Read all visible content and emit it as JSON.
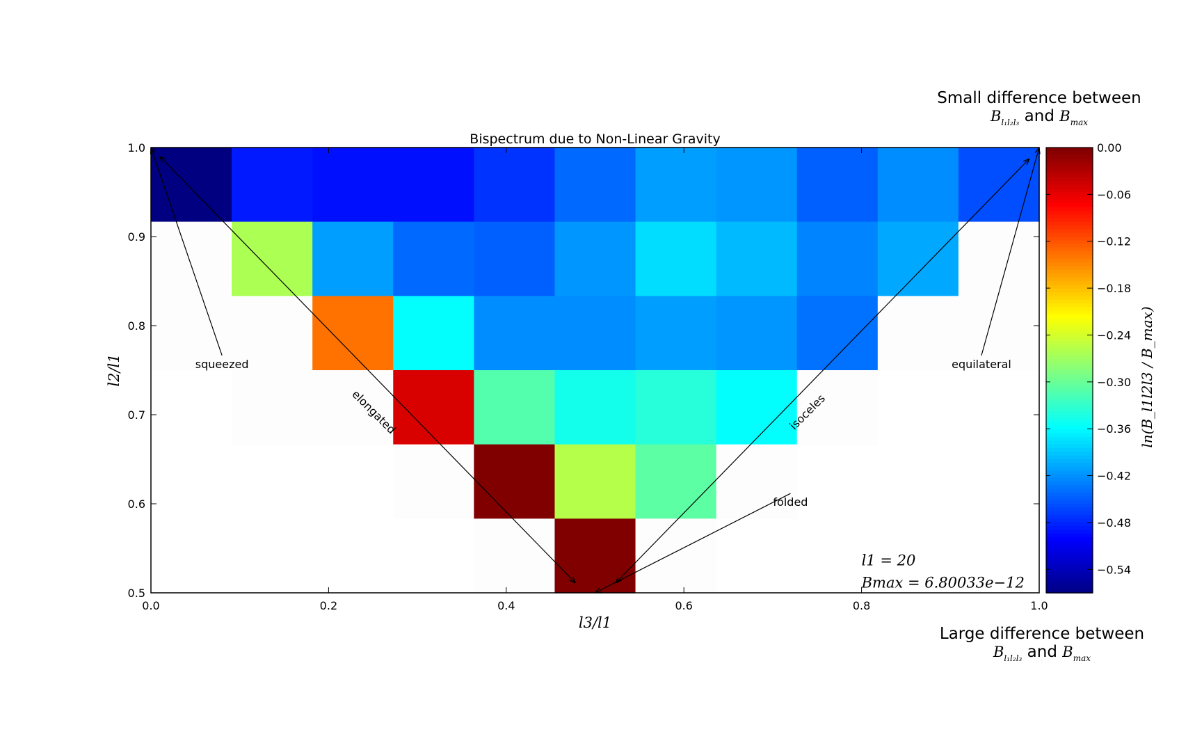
{
  "chart_data": {
    "type": "heatmap",
    "title": "Bispectrum due to Non-Linear Gravity",
    "xlabel": "l3/l1",
    "ylabel": "l2/l1",
    "xlim": [
      0.0,
      1.0
    ],
    "ylim": [
      0.5,
      1.0
    ],
    "x_ticks": [
      "0.0",
      "0.2",
      "0.4",
      "0.6",
      "0.8",
      "1.0"
    ],
    "y_ticks": [
      "0.5",
      "0.6",
      "0.7",
      "0.8",
      "0.9",
      "1.0"
    ],
    "grid": false,
    "colormap": "jet",
    "colorbar": {
      "label": "ln(B_l1l2l3 / B_max)",
      "range": [
        -0.57,
        0.0
      ],
      "ticks": [
        "0.00",
        "−0.06",
        "−0.12",
        "−0.18",
        "−0.24",
        "−0.30",
        "−0.36",
        "−0.42",
        "−0.48",
        "−0.54"
      ],
      "top_note": {
        "line1": "Small difference between",
        "conj": "and"
      },
      "bottom_note": {
        "line1": "Large difference between",
        "conj": "and"
      }
    },
    "grid_cols": 11,
    "row_edges": [
      1.0,
      0.9167,
      0.8333,
      0.75,
      0.6667,
      0.5833,
      0.5
    ],
    "cells": [
      {
        "row": 0,
        "col": 0,
        "value": -0.57
      },
      {
        "row": 0,
        "col": 1,
        "value": -0.485
      },
      {
        "row": 0,
        "col": 2,
        "value": -0.49
      },
      {
        "row": 0,
        "col": 3,
        "value": -0.49
      },
      {
        "row": 0,
        "col": 4,
        "value": -0.47
      },
      {
        "row": 0,
        "col": 5,
        "value": -0.44
      },
      {
        "row": 0,
        "col": 6,
        "value": -0.41
      },
      {
        "row": 0,
        "col": 7,
        "value": -0.415
      },
      {
        "row": 0,
        "col": 8,
        "value": -0.445
      },
      {
        "row": 0,
        "col": 9,
        "value": -0.42
      },
      {
        "row": 0,
        "col": 10,
        "value": -0.455
      },
      {
        "row": 1,
        "col": 0,
        "value": null
      },
      {
        "row": 1,
        "col": 1,
        "value": -0.26
      },
      {
        "row": 1,
        "col": 2,
        "value": -0.41
      },
      {
        "row": 1,
        "col": 3,
        "value": -0.44
      },
      {
        "row": 1,
        "col": 4,
        "value": -0.445
      },
      {
        "row": 1,
        "col": 5,
        "value": -0.415
      },
      {
        "row": 1,
        "col": 6,
        "value": -0.375
      },
      {
        "row": 1,
        "col": 7,
        "value": -0.395
      },
      {
        "row": 1,
        "col": 8,
        "value": -0.425
      },
      {
        "row": 1,
        "col": 9,
        "value": -0.405
      },
      {
        "row": 1,
        "col": 10,
        "value": null
      },
      {
        "row": 2,
        "col": 0,
        "value": null
      },
      {
        "row": 2,
        "col": 1,
        "value": null
      },
      {
        "row": 2,
        "col": 2,
        "value": -0.135
      },
      {
        "row": 2,
        "col": 3,
        "value": -0.355
      },
      {
        "row": 2,
        "col": 4,
        "value": -0.42
      },
      {
        "row": 2,
        "col": 5,
        "value": -0.42
      },
      {
        "row": 2,
        "col": 6,
        "value": -0.41
      },
      {
        "row": 2,
        "col": 7,
        "value": -0.415
      },
      {
        "row": 2,
        "col": 8,
        "value": -0.435
      },
      {
        "row": 2,
        "col": 9,
        "value": null
      },
      {
        "row": 2,
        "col": 10,
        "value": null
      },
      {
        "row": 3,
        "col": 1,
        "value": null
      },
      {
        "row": 3,
        "col": 2,
        "value": null
      },
      {
        "row": 3,
        "col": 3,
        "value": -0.05
      },
      {
        "row": 3,
        "col": 4,
        "value": -0.31
      },
      {
        "row": 3,
        "col": 5,
        "value": -0.345
      },
      {
        "row": 3,
        "col": 6,
        "value": -0.335
      },
      {
        "row": 3,
        "col": 7,
        "value": -0.355
      },
      {
        "row": 3,
        "col": 8,
        "value": null
      },
      {
        "row": 4,
        "col": 3,
        "value": null
      },
      {
        "row": 4,
        "col": 4,
        "value": 0.0
      },
      {
        "row": 4,
        "col": 5,
        "value": -0.255
      },
      {
        "row": 4,
        "col": 6,
        "value": -0.305
      },
      {
        "row": 4,
        "col": 7,
        "value": null
      },
      {
        "row": 5,
        "col": 4,
        "value": null
      },
      {
        "row": 5,
        "col": 5,
        "value": 0.0
      },
      {
        "row": 5,
        "col": 6,
        "value": null
      }
    ],
    "annotations": [
      {
        "text": "squeezed",
        "tip": [
          0.0,
          1.0
        ],
        "tx": 0.08,
        "ty": 0.7525,
        "ha": "middle"
      },
      {
        "text": "equilateral",
        "tip": [
          1.0,
          1.0
        ],
        "tx": 0.935,
        "ty": 0.7525,
        "ha": "middle"
      },
      {
        "text": "folded",
        "tip": [
          0.5,
          0.5
        ],
        "tx": 0.72,
        "ty": 0.5975,
        "ha": "middle"
      },
      {
        "text": "elongated",
        "tip_start": [
          0.01,
          0.99
        ],
        "tip": [
          0.478,
          0.511
        ],
        "tx": 0.248,
        "ty": 0.7,
        "rotate": 45,
        "ha": "middle"
      },
      {
        "text": "isoceles",
        "tip_start": [
          0.523,
          0.511
        ],
        "tip": [
          0.989,
          0.9875
        ],
        "tx": 0.742,
        "ty": 0.7,
        "rotate": -45,
        "ha": "middle"
      }
    ],
    "info": {
      "l1_label": "l1 = 20",
      "bmax_label": "Bmax = 6.80033e−12"
    }
  }
}
